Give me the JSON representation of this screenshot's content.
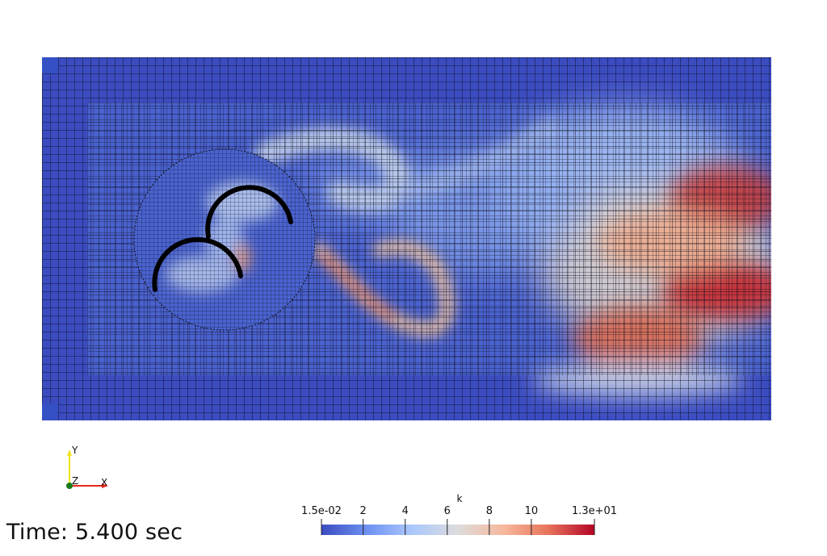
{
  "scene": {
    "field_name": "k",
    "time_label": "Time: 5.400 sec",
    "boundary_color": "#3b4cc0"
  },
  "colorbar": {
    "title": "k",
    "colormap": "Cool to Warm",
    "range": [
      0.015,
      13
    ],
    "ticks": [
      {
        "value": 0.015,
        "label": "1.5e-02"
      },
      {
        "value": 2,
        "label": "2"
      },
      {
        "value": 4,
        "label": "4"
      },
      {
        "value": 6,
        "label": "6"
      },
      {
        "value": 8,
        "label": "8"
      },
      {
        "value": 10,
        "label": "10"
      },
      {
        "value": 13,
        "label": "1.3e+01"
      }
    ],
    "colors": [
      "#3b4cc0",
      "#6f92f3",
      "#aac7fd",
      "#dddcdc",
      "#f7b89c",
      "#e7745b",
      "#b40426"
    ]
  },
  "orientation_axes": {
    "x_label": "X",
    "y_label": "Y",
    "z_label": "Z",
    "x_color": "#e8251f",
    "y_color": "#f2e21d",
    "z_color": "#1a7a1a"
  }
}
